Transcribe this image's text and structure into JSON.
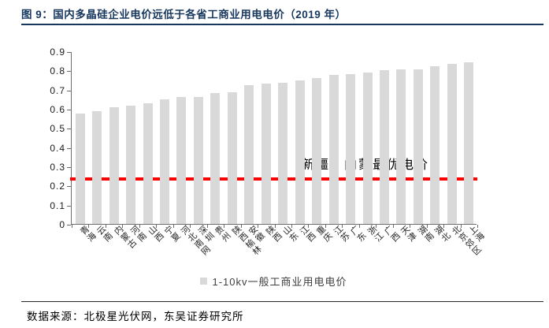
{
  "header": {
    "title": "图 9：国内多晶硅企业电价远低于各省工商业用电电价（2019 年）"
  },
  "chart_data": {
    "type": "bar",
    "title": "国内多晶硅企业电价远低于各省工商业用电电价（2019 年）",
    "categories": [
      "青海",
      "云南",
      "内蒙古",
      "河南",
      "山西",
      "宁夏",
      "河北南网",
      "深圳",
      "贵州",
      "陕西榆林",
      "安徽",
      "陕西",
      "山东",
      "江西",
      "重庆",
      "江苏",
      "广东",
      "浙江",
      "广西",
      "天津",
      "湖南",
      "湖北",
      "北京郊区",
      "上海"
    ],
    "values": [
      0.574,
      0.586,
      0.61,
      0.615,
      0.627,
      0.65,
      0.66,
      0.663,
      0.684,
      0.686,
      0.725,
      0.733,
      0.736,
      0.748,
      0.762,
      0.778,
      0.781,
      0.79,
      0.8,
      0.804,
      0.807,
      0.822,
      0.833,
      0.842
    ],
    "xlabel": "",
    "ylabel": "",
    "ylim": [
      0,
      0.9
    ],
    "yticks": [
      0,
      0.1,
      0.2,
      0.3,
      0.4,
      0.5,
      0.6,
      0.7,
      0.8,
      0.9
    ],
    "ytick_labels": [
      "0",
      "0.1",
      "0.2",
      "0.3",
      "0.4",
      "0.5",
      "0.6",
      "0.7",
      "0.8",
      "0.9"
    ],
    "grid": false,
    "bar_color": "#D9D9D9",
    "legend": {
      "position": "bottom",
      "label": "1-10kv一般工商业用电电价",
      "marker_color": "#D9D9D9"
    },
    "reference_line": {
      "value": 0.24,
      "color": "#FF0000",
      "annotation": "新疆、内蒙最优电价"
    }
  },
  "footer": {
    "source": "数据来源：北极星光伏网，东吴证券研究所"
  },
  "colors": {
    "title": "#17375E",
    "title_rule": "#17375E",
    "bar": "#D9D9D9",
    "reference_line": "#FF0000",
    "axis": "#6e6e6e",
    "background": "#ffffff"
  }
}
